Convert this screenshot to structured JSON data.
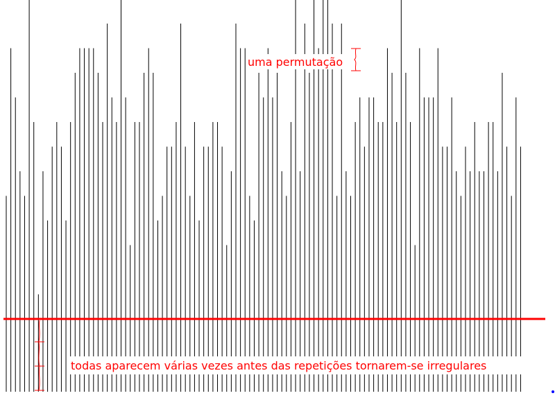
{
  "chart_data": {
    "type": "bar",
    "title": "",
    "xlabel": "",
    "ylabel": "",
    "grid": false,
    "bar_color": "#000000",
    "accent_color": "#ff0000",
    "dot_color": "#0000ff",
    "ylim": [
      0,
      15
    ],
    "values": [
      5,
      11,
      9,
      6,
      5,
      15,
      8,
      1,
      6,
      4,
      7,
      8,
      7,
      4,
      8,
      10,
      11,
      11,
      11,
      11,
      10,
      8,
      12,
      9,
      8,
      13,
      9,
      3,
      8,
      8,
      10,
      11,
      10,
      4,
      5,
      7,
      7,
      8,
      12,
      7,
      5,
      8,
      4,
      7,
      7,
      8,
      8,
      7,
      3,
      6,
      12,
      11,
      11,
      5,
      4,
      10,
      9,
      11,
      9,
      10,
      6,
      5,
      8,
      13,
      6,
      12,
      10,
      14,
      11,
      13,
      14,
      12,
      5,
      12,
      6,
      5,
      8,
      9,
      7,
      9,
      9,
      8,
      8,
      11,
      10,
      8,
      14,
      10,
      8,
      3,
      11,
      9,
      9,
      9,
      11,
      7,
      7,
      9,
      6,
      5,
      7,
      6,
      8,
      6,
      6,
      8,
      8,
      6,
      10,
      7,
      5,
      9,
      7
    ]
  },
  "annotations": {
    "top_label": "uma permutação",
    "bottom_label": "todas aparecem várias vezes antes das repetições tornarem-se irregulares"
  }
}
